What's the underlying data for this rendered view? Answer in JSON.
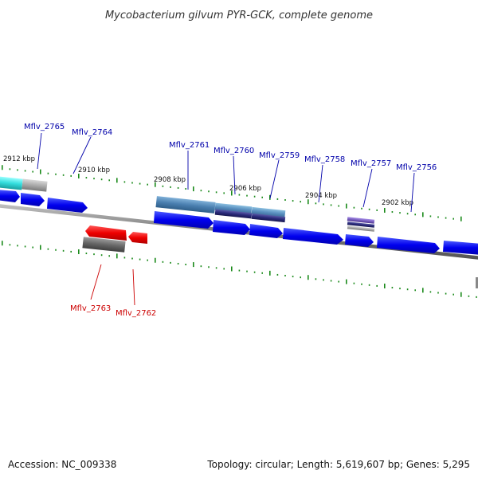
{
  "title": "Mycobacterium gilvum PYR-GCK, complete genome",
  "footer": {
    "accession": "Accession: NC_009338",
    "summary": "Topology: circular; Length: 5,619,607 bp; Genes: 5,295"
  },
  "colors": {
    "background": "#ffffff",
    "backbone": "#808080",
    "tick": "#1a8a1a",
    "gene_forward": "#0000ee",
    "gene_reverse": "#ee0000",
    "label_forward": "#0000aa",
    "label_reverse": "#cc0000",
    "cds_steelblue": "#4a7fb0",
    "cds_dark_indigo": "#2a2a7a",
    "cds_cyan": "#33dddd",
    "cds_gray": "#aaaaaa",
    "cds_dark_gray": "#666666",
    "cds_purple": "#7a5fc0"
  },
  "scale_labels": [
    "2912 kbp",
    "2910 kbp",
    "2908 kbp",
    "2906 kbp",
    "2904 kbp",
    "2902 kbp"
  ],
  "forward_gene_labels": [
    "Mflv_2765",
    "Mflv_2764",
    "Mflv_2761",
    "Mflv_2760",
    "Mflv_2759",
    "Mflv_2758",
    "Mflv_2757",
    "Mflv_2756"
  ],
  "reverse_gene_labels": [
    "Mflv_2763",
    "Mflv_2762"
  ]
}
